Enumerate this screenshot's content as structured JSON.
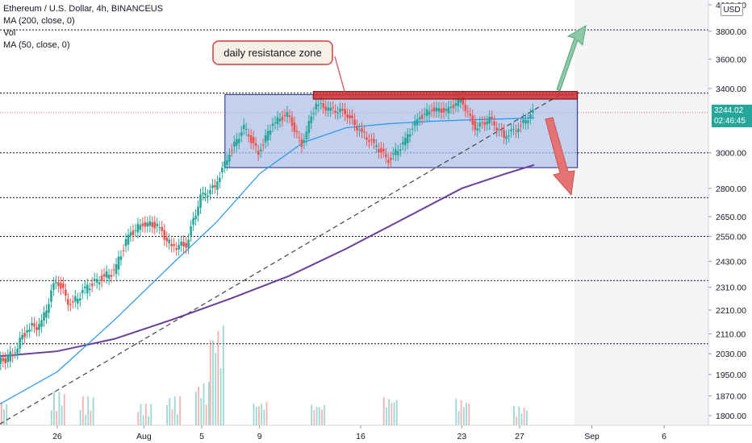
{
  "legend": {
    "symbol": "Ethereum / U.S. Dollar, 4h, BINANCEUS",
    "ma200": "MA (200, close, 0)",
    "vol": "Vol",
    "ma50": "MA (50, close, 0)"
  },
  "currency": "USD",
  "last_price": "3244.02",
  "countdown": "02:46:45",
  "annotation": "daily resistance zone",
  "colors": {
    "up": "#26a69a",
    "down": "#ef5350",
    "ma50": "#2196f3",
    "ma200": "#6a3d9a",
    "zone": "#a9bde8",
    "resistance": "#d32f2f",
    "arrow_up": "#8bc9a7",
    "arrow_down": "#e57373"
  },
  "chart_data": {
    "type": "candlestick",
    "title": "Ethereum / U.S. Dollar, 4h, BINANCEUS",
    "x_ticks": [
      "26",
      "Aug",
      "5",
      "9",
      "16",
      "23",
      "27",
      "Sep",
      "6"
    ],
    "y_ticks": [
      1800,
      1870,
      1950,
      2030,
      2110,
      2210,
      2310,
      2430,
      2550,
      2650,
      2800,
      3000,
      3400,
      3600,
      3800,
      4000
    ],
    "y_scale": "log",
    "ylim": [
      1760,
      4050
    ],
    "last_price": 3244.02,
    "horizontal_levels": [
      3370,
      3000,
      2750,
      2550,
      2340,
      2070,
      3810
    ],
    "consolidation_box": {
      "price_top": 3360,
      "price_bottom": 2915
    },
    "resistance_zone": {
      "price_top": 3380,
      "price_bottom": 3330
    },
    "trendline": {
      "from": {
        "x": "Jul 22",
        "y": 1770
      },
      "to": {
        "x": "Aug 30",
        "y": 3370
      }
    },
    "price_path": [
      {
        "x": "Jul 22",
        "y": 1990
      },
      {
        "x": "Jul 23",
        "y": 2030
      },
      {
        "x": "Jul 24",
        "y": 2130
      },
      {
        "x": "Jul 25",
        "y": 2150
      },
      {
        "x": "Jul 26",
        "y": 2350
      },
      {
        "x": "Jul 27",
        "y": 2230
      },
      {
        "x": "Jul 28",
        "y": 2300
      },
      {
        "x": "Jul 29",
        "y": 2350
      },
      {
        "x": "Jul 30",
        "y": 2380
      },
      {
        "x": "Jul 31",
        "y": 2550
      },
      {
        "x": "Aug 1",
        "y": 2620
      },
      {
        "x": "Aug 2",
        "y": 2600
      },
      {
        "x": "Aug 3",
        "y": 2500
      },
      {
        "x": "Aug 4",
        "y": 2510
      },
      {
        "x": "Aug 5",
        "y": 2750
      },
      {
        "x": "Aug 6",
        "y": 2810
      },
      {
        "x": "Aug 7",
        "y": 3000
      },
      {
        "x": "Aug 8",
        "y": 3150
      },
      {
        "x": "Aug 9",
        "y": 3000
      },
      {
        "x": "Aug 10",
        "y": 3180
      },
      {
        "x": "Aug 11",
        "y": 3230
      },
      {
        "x": "Aug 12",
        "y": 3050
      },
      {
        "x": "Aug 13",
        "y": 3300
      },
      {
        "x": "Aug 14",
        "y": 3260
      },
      {
        "x": "Aug 15",
        "y": 3250
      },
      {
        "x": "Aug 16",
        "y": 3130
      },
      {
        "x": "Aug 17",
        "y": 3050
      },
      {
        "x": "Aug 18",
        "y": 2960
      },
      {
        "x": "Aug 19",
        "y": 3050
      },
      {
        "x": "Aug 20",
        "y": 3200
      },
      {
        "x": "Aug 21",
        "y": 3270
      },
      {
        "x": "Aug 22",
        "y": 3250
      },
      {
        "x": "Aug 23",
        "y": 3330
      },
      {
        "x": "Aug 24",
        "y": 3150
      },
      {
        "x": "Aug 25",
        "y": 3200
      },
      {
        "x": "Aug 26",
        "y": 3100
      },
      {
        "x": "Aug 27",
        "y": 3150
      },
      {
        "x": "Aug 28",
        "y": 3244
      }
    ],
    "ma50_path": [
      {
        "x": "Jul 22",
        "y": 1840
      },
      {
        "x": "Jul 26",
        "y": 1960
      },
      {
        "x": "Jul 30",
        "y": 2170
      },
      {
        "x": "Aug 3",
        "y": 2420
      },
      {
        "x": "Aug 6",
        "y": 2620
      },
      {
        "x": "Aug 9",
        "y": 2880
      },
      {
        "x": "Aug 12",
        "y": 3060
      },
      {
        "x": "Aug 15",
        "y": 3150
      },
      {
        "x": "Aug 18",
        "y": 3175
      },
      {
        "x": "Aug 21",
        "y": 3190
      },
      {
        "x": "Aug 24",
        "y": 3200
      },
      {
        "x": "Aug 28",
        "y": 3210
      }
    ],
    "ma200_path": [
      {
        "x": "Jul 22",
        "y": 2020
      },
      {
        "x": "Jul 26",
        "y": 2040
      },
      {
        "x": "Jul 30",
        "y": 2090
      },
      {
        "x": "Aug 3",
        "y": 2170
      },
      {
        "x": "Aug 7",
        "y": 2260
      },
      {
        "x": "Aug 11",
        "y": 2360
      },
      {
        "x": "Aug 15",
        "y": 2490
      },
      {
        "x": "Aug 19",
        "y": 2640
      },
      {
        "x": "Aug 23",
        "y": 2800
      },
      {
        "x": "Aug 26",
        "y": 2880
      },
      {
        "x": "Aug 28",
        "y": 2930
      }
    ],
    "volume": [
      {
        "x": "Jul 22",
        "v": 10
      },
      {
        "x": "Jul 26",
        "v": 14
      },
      {
        "x": "Jul 28",
        "v": 12
      },
      {
        "x": "Aug 1",
        "v": 9
      },
      {
        "x": "Aug 3",
        "v": 12
      },
      {
        "x": "Aug 5",
        "v": 18
      },
      {
        "x": "Aug 6",
        "v": 42
      },
      {
        "x": "Aug 9",
        "v": 10
      },
      {
        "x": "Aug 13",
        "v": 9
      },
      {
        "x": "Aug 18",
        "v": 12
      },
      {
        "x": "Aug 23",
        "v": 11
      },
      {
        "x": "Aug 27",
        "v": 8
      }
    ]
  }
}
